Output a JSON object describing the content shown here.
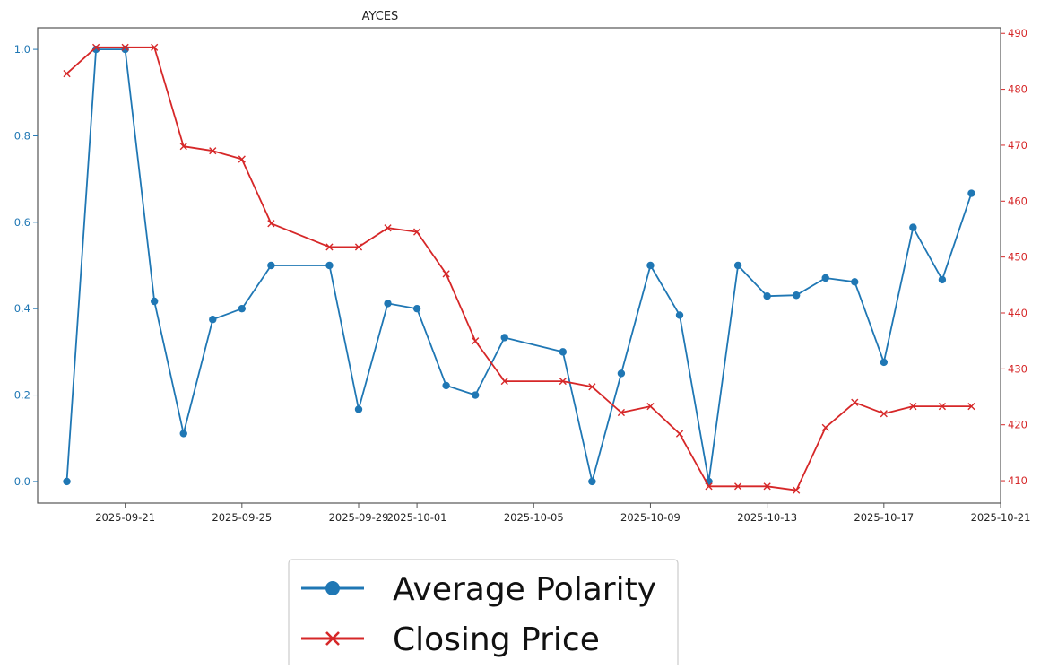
{
  "chart_data": {
    "type": "line",
    "title": "AYCES",
    "xlabel": "",
    "ylabel_left": "",
    "ylabel_right": "",
    "x_ticks": [
      "2025-09-21",
      "2025-09-25",
      "2025-09-29",
      "2025-10-01",
      "2025-10-05",
      "2025-10-09",
      "2025-10-13",
      "2025-10-17",
      "2025-10-21"
    ],
    "y_left_ticks": [
      "0.0",
      "0.2",
      "0.4",
      "0.6",
      "0.8",
      "1.0"
    ],
    "y_right_ticks": [
      "410",
      "420",
      "430",
      "440",
      "450",
      "460",
      "470",
      "480",
      "490"
    ],
    "y_left_lim": [
      -0.05,
      1.05
    ],
    "y_right_lim": [
      406,
      491
    ],
    "x_lim": [
      "2025-09-18",
      "2025-10-21"
    ],
    "legend_placement": "below",
    "grid": false,
    "colors": {
      "polarity": "#1f77b4",
      "price": "#d62728",
      "axis": "#555555"
    },
    "series": [
      {
        "name": "Average Polarity",
        "axis": "left",
        "marker": "circle",
        "x": [
          "2025-09-19",
          "2025-09-20",
          "2025-09-21",
          "2025-09-22",
          "2025-09-23",
          "2025-09-24",
          "2025-09-25",
          "2025-09-26",
          "2025-09-28",
          "2025-09-29",
          "2025-09-30",
          "2025-10-01",
          "2025-10-02",
          "2025-10-03",
          "2025-10-04",
          "2025-10-06",
          "2025-10-07",
          "2025-10-08",
          "2025-10-09",
          "2025-10-10",
          "2025-10-11",
          "2025-10-12",
          "2025-10-13",
          "2025-10-14",
          "2025-10-15",
          "2025-10-16",
          "2025-10-17",
          "2025-10-18",
          "2025-10-19",
          "2025-10-20"
        ],
        "values": [
          0.0,
          1.0,
          1.0,
          0.417,
          0.111,
          0.375,
          0.4,
          0.5,
          0.5,
          0.167,
          0.412,
          0.4,
          0.222,
          0.2,
          0.333,
          0.3,
          0.0,
          0.25,
          0.5,
          0.385,
          0.0,
          0.5,
          0.429,
          0.431,
          0.471,
          0.462,
          0.276,
          0.588,
          0.467,
          0.667
        ]
      },
      {
        "name": "Closing Price",
        "axis": "right",
        "marker": "x",
        "x": [
          "2025-09-19",
          "2025-09-20",
          "2025-09-21",
          "2025-09-22",
          "2025-09-23",
          "2025-09-24",
          "2025-09-25",
          "2025-09-26",
          "2025-09-28",
          "2025-09-29",
          "2025-09-30",
          "2025-10-01",
          "2025-10-02",
          "2025-10-03",
          "2025-10-04",
          "2025-10-06",
          "2025-10-07",
          "2025-10-08",
          "2025-10-09",
          "2025-10-10",
          "2025-10-11",
          "2025-10-12",
          "2025-10-13",
          "2025-10-14",
          "2025-10-15",
          "2025-10-16",
          "2025-10-17",
          "2025-10-18",
          "2025-10-19",
          "2025-10-20"
        ],
        "values": [
          482.8,
          487.5,
          487.5,
          487.5,
          469.8,
          469.0,
          467.5,
          456.0,
          451.8,
          451.8,
          455.2,
          454.5,
          447.0,
          435.0,
          427.8,
          427.8,
          426.8,
          422.2,
          423.3,
          418.4,
          409.0,
          409.0,
          409.0,
          408.3,
          419.5,
          424.0,
          422.0,
          423.3,
          423.3,
          423.3
        ]
      }
    ]
  }
}
